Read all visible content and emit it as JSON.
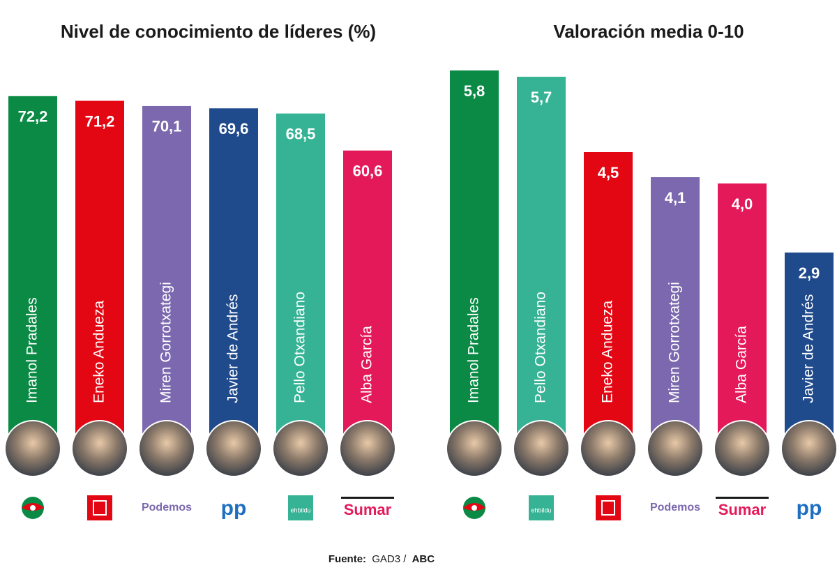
{
  "chart_data": [
    {
      "type": "bar",
      "title": "Nivel de conocimiento de líderes (%)",
      "categories": [
        "Imanol Pradales",
        "Eneko Andueza",
        "Miren Gorrotxategi",
        "Javier de Andrés",
        "Pello Otxandiano",
        "Alba García"
      ],
      "values": [
        72.2,
        71.2,
        70.1,
        69.6,
        68.5,
        60.6
      ],
      "value_labels": [
        "72,2",
        "71,2",
        "70,1",
        "69,6",
        "68,5",
        "60,6"
      ],
      "colors": [
        "#0a8a45",
        "#e30613",
        "#7b68ae",
        "#1f4a8c",
        "#35b394",
        "#e4195a"
      ],
      "logos": [
        null,
        null,
        "Podemos",
        "pp",
        "ehbildu",
        "Sumar"
      ]
    },
    {
      "type": "bar",
      "title": "Valoración media 0-10",
      "categories": [
        "Imanol Pradales",
        "Pello Otxandiano",
        "Eneko Andueza",
        "Miren Gorrotxategi",
        "Alba García",
        "Javier de Andrés"
      ],
      "values": [
        5.8,
        5.7,
        4.5,
        4.1,
        4.0,
        2.9
      ],
      "value_labels": [
        "5,8",
        "5,7",
        "4,5",
        "4,1",
        "4,0",
        "2,9"
      ],
      "colors": [
        "#0a8a45",
        "#35b394",
        "#e30613",
        "#7b68ae",
        "#e4195a",
        "#1f4a8c"
      ],
      "logos": [
        null,
        "ehbildu",
        null,
        "Podemos",
        "Sumar",
        "pp"
      ]
    }
  ],
  "source": {
    "label": "Fuente:",
    "text": "GAD3 /",
    "brand": "ABC"
  }
}
